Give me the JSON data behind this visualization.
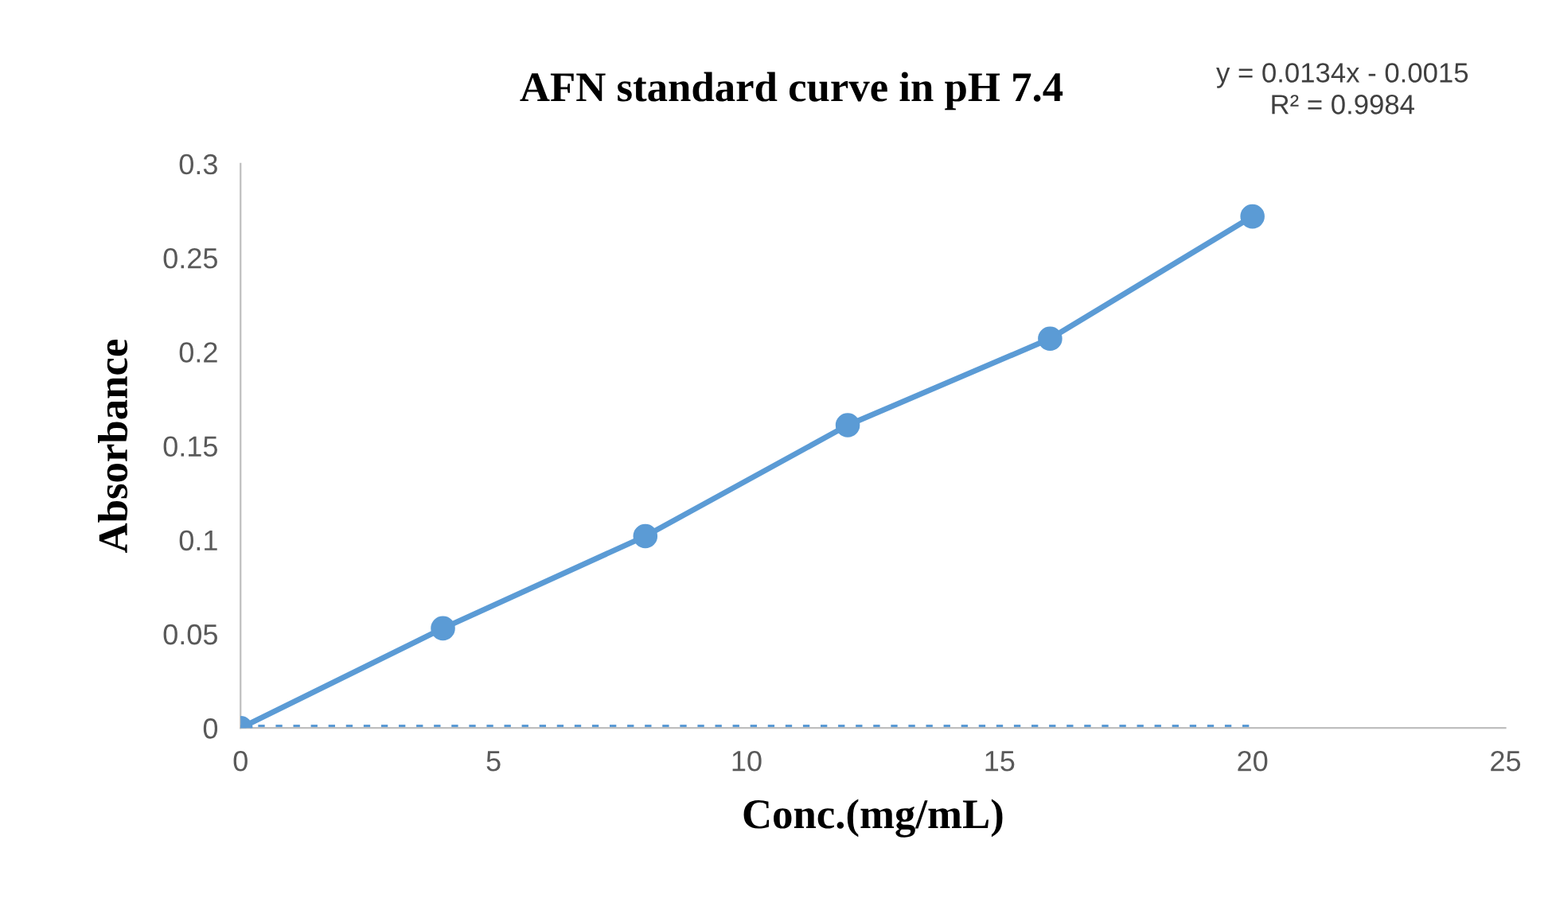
{
  "chart_data": {
    "type": "line",
    "title": "AFN standard curve in pH 7.4",
    "xlabel": "Conc.(mg/mL)",
    "ylabel": "Absorbance",
    "annotations": [
      "y = 0.0134x - 0.0015\nR² = 0.9984"
    ],
    "series": [
      {
        "x": [
          0,
          4,
          8,
          12,
          16,
          20
        ],
        "values": [
          0,
          0.053,
          0.102,
          0.161,
          0.207,
          0.272
        ],
        "color": "#5b9bd5",
        "marker": "circle",
        "line_style": "solid"
      },
      {
        "x": [
          0,
          20
        ],
        "values": [
          0,
          0
        ],
        "color": "#5b9bd5",
        "marker": "none",
        "line_style": "dotted"
      }
    ],
    "xlim": [
      0,
      25
    ],
    "xticks": [
      0,
      5,
      10,
      15,
      20,
      25
    ],
    "ylim": [
      0,
      0.3
    ],
    "yticks": [
      0,
      0.05,
      0.1,
      0.15,
      0.2,
      0.25,
      0.3
    ],
    "grid": false,
    "legend": false
  }
}
